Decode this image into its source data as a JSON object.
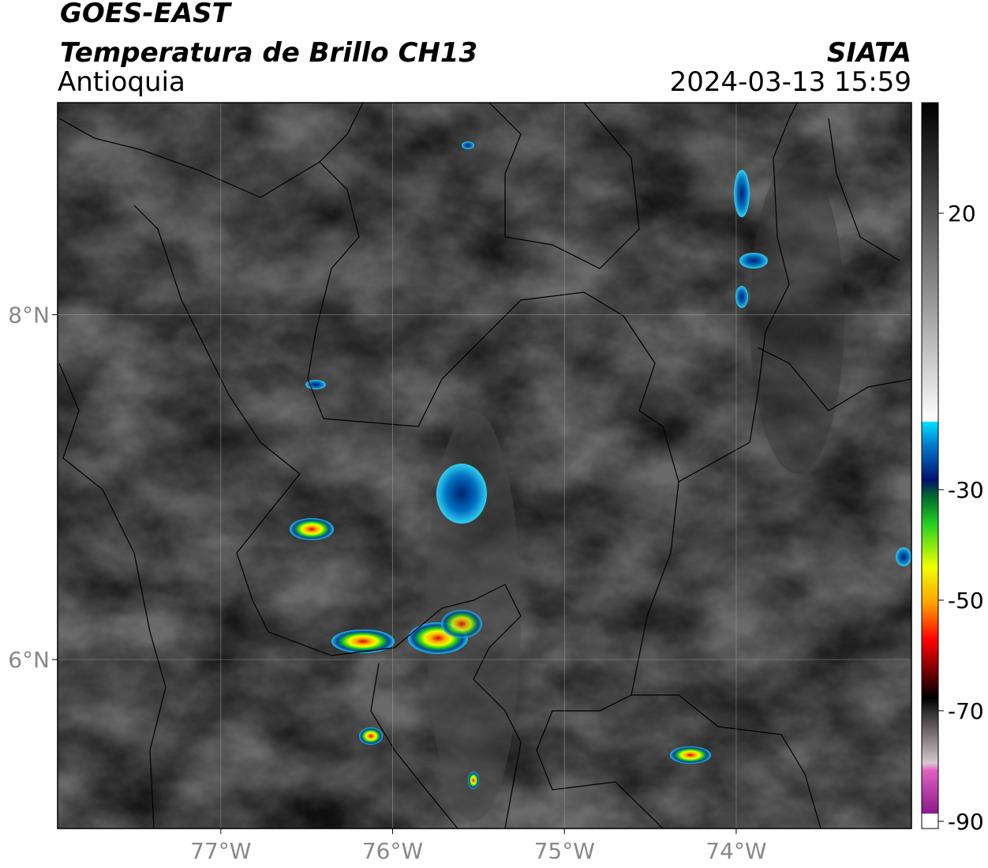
{
  "header": {
    "title": "GOES-EAST",
    "subtitle": "Temperatura de Brillo CH13",
    "region": "Antioquia",
    "source": "SIATA",
    "datetime": "2024-03-13 15:59"
  },
  "map": {
    "xlim": [
      -77.95,
      -72.98
    ],
    "ylim": [
      5.02,
      9.23
    ],
    "xticks": [
      {
        "value": -77,
        "label": "77°W"
      },
      {
        "value": -76,
        "label": "76°W"
      },
      {
        "value": -75,
        "label": "75°W"
      },
      {
        "value": -74,
        "label": "74°W"
      }
    ],
    "yticks": [
      {
        "value": 6,
        "label": "6°N"
      },
      {
        "value": 8,
        "label": "8°N"
      }
    ],
    "grid": true
  },
  "colorbar": {
    "lim": [
      -91.3,
      40
    ],
    "ticks": [
      20,
      -30,
      -50,
      -70,
      -90
    ]
  }
}
